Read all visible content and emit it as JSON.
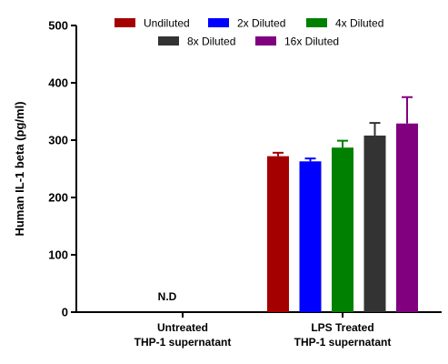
{
  "chart_data": {
    "type": "bar",
    "ylabel": "Human IL-1 beta (pg/ml)",
    "ylim": [
      0,
      500
    ],
    "yticks": [
      0,
      100,
      200,
      300,
      400,
      500
    ],
    "categories": [
      [
        "Untreated",
        "THP-1 supernatant"
      ],
      [
        "LPS Treated",
        "THP-1 supernatant"
      ]
    ],
    "series": [
      {
        "name": "Undiluted",
        "color": "#a50000",
        "values": [
          null,
          272
        ],
        "errors": [
          null,
          6
        ]
      },
      {
        "name": "2x Diluted",
        "color": "#0000ff",
        "values": [
          null,
          263
        ],
        "errors": [
          null,
          5
        ]
      },
      {
        "name": "4x Diluted",
        "color": "#008000",
        "values": [
          null,
          287
        ],
        "errors": [
          null,
          12
        ]
      },
      {
        "name": "8x Diluted",
        "color": "#333333",
        "values": [
          null,
          308
        ],
        "errors": [
          null,
          22
        ]
      },
      {
        "name": "16x Diluted",
        "color": "#800080",
        "values": [
          null,
          329
        ],
        "errors": [
          null,
          46
        ]
      }
    ],
    "annotations": [
      {
        "category": 0,
        "text": "N.D"
      }
    ],
    "legend": "top",
    "grid": false,
    "error_bars": true
  }
}
